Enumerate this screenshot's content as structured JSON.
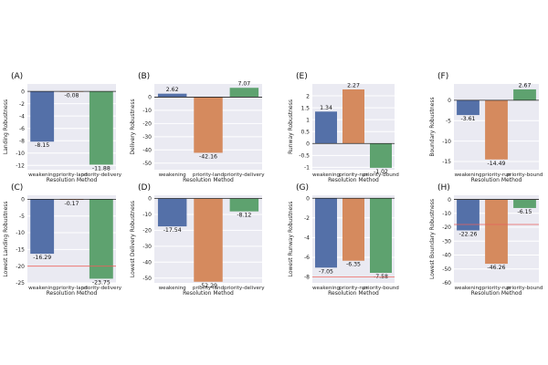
{
  "colors": {
    "blue": "#5470a8",
    "orange": "#d58a5e",
    "green": "#5ea26f",
    "plot_bg": "#eaeaf2",
    "threshold": "#e8615d"
  },
  "chart_data": [
    {
      "panel": "(A)",
      "type": "bar",
      "ylabel": "Landing Robustness",
      "xlabel": "Resolution Method",
      "categories": [
        "weakening",
        "priority-land",
        "priority-delivery"
      ],
      "values": [
        -8.15,
        -0.08,
        -11.88
      ],
      "labels": [
        "-8.15",
        "-0.08",
        "-11.88"
      ],
      "ylim": [
        -12.7,
        1.2
      ],
      "yticks": [
        0,
        -2,
        -4,
        -6,
        -8,
        -10,
        -12
      ]
    },
    {
      "panel": "(B)",
      "type": "bar",
      "ylabel": "Delivery Robustness",
      "xlabel": "Resolution Method",
      "categories": [
        "weakening",
        "priority-land",
        "priority-delivery"
      ],
      "values": [
        2.62,
        -42.16,
        7.07
      ],
      "labels": [
        "2.62",
        "-42.16",
        "7.07"
      ],
      "ylim": [
        -55,
        10
      ],
      "yticks": [
        0,
        -10,
        -20,
        -30,
        -40,
        -50
      ]
    },
    {
      "panel": "(E)",
      "type": "bar",
      "ylabel": "Runway Robustness",
      "xlabel": "Resolution Method",
      "categories": [
        "weakening",
        "priority-run",
        "priority-bound"
      ],
      "values": [
        1.34,
        2.27,
        -1.02
      ],
      "labels": [
        "1.34",
        "2.27",
        "-1.02"
      ],
      "ylim": [
        -1.1,
        2.5
      ],
      "yticks": [
        2.0,
        1.5,
        1.0,
        0.5,
        0.0,
        -0.5,
        -1.0
      ]
    },
    {
      "panel": "(F)",
      "type": "bar",
      "ylabel": "Boundary Robustness",
      "xlabel": "Resolution Method",
      "categories": [
        "weakening",
        "priority-run",
        "priority-bound"
      ],
      "values": [
        -3.61,
        -14.49,
        2.67
      ],
      "labels": [
        "-3.61",
        "-14.49",
        "2.67"
      ],
      "ylim": [
        -17,
        4
      ],
      "yticks": [
        0,
        -5,
        -10,
        -15
      ]
    },
    {
      "panel": "(C)",
      "type": "bar",
      "ylabel": "Lowest Landing Robustness",
      "xlabel": "Resolution Method",
      "categories": [
        "weakening",
        "priority-land",
        "priority-delivery"
      ],
      "values": [
        -16.29,
        -0.17,
        -23.75
      ],
      "labels": [
        "-16.29",
        "-0.17",
        "-23.75"
      ],
      "ylim": [
        -25,
        1.2
      ],
      "yticks": [
        0,
        -5,
        -10,
        -15,
        -20,
        -25
      ],
      "threshold": -20
    },
    {
      "panel": "(D)",
      "type": "bar",
      "ylabel": "Lowest Delivery Robustness",
      "xlabel": "Resolution Method",
      "categories": [
        "weakening",
        "priority-land",
        "priority-delivery"
      ],
      "values": [
        -17.54,
        -52.29,
        -8.12
      ],
      "labels": [
        "-17.54",
        "-52.29",
        "-8.12"
      ],
      "ylim": [
        -53,
        2
      ],
      "yticks": [
        0,
        -10,
        -20,
        -30,
        -40,
        -50
      ]
    },
    {
      "panel": "(G)",
      "type": "bar",
      "ylabel": "Lowest Runway Robustness",
      "xlabel": "Resolution Method",
      "categories": [
        "weakening",
        "priority-run",
        "priority-bound"
      ],
      "values": [
        -7.05,
        -6.35,
        -7.58
      ],
      "labels": [
        "-7.05",
        "-6.35",
        "-7.58"
      ],
      "ylim": [
        -8.6,
        0.3
      ],
      "yticks": [
        0,
        -2,
        -4,
        -6,
        -8
      ],
      "threshold": -8
    },
    {
      "panel": "(H)",
      "type": "bar",
      "ylabel": "Lowest Boundary Robustness",
      "xlabel": "Resolution Method",
      "categories": [
        "weakening",
        "priority-run",
        "priority-bound"
      ],
      "values": [
        -22.26,
        -46.26,
        -6.15
      ],
      "labels": [
        "-22.26",
        "-46.26",
        "-6.15"
      ],
      "ylim": [
        -60,
        3
      ],
      "yticks": [
        0,
        -10,
        -20,
        -30,
        -40,
        -50,
        -60
      ],
      "threshold": -18
    }
  ]
}
